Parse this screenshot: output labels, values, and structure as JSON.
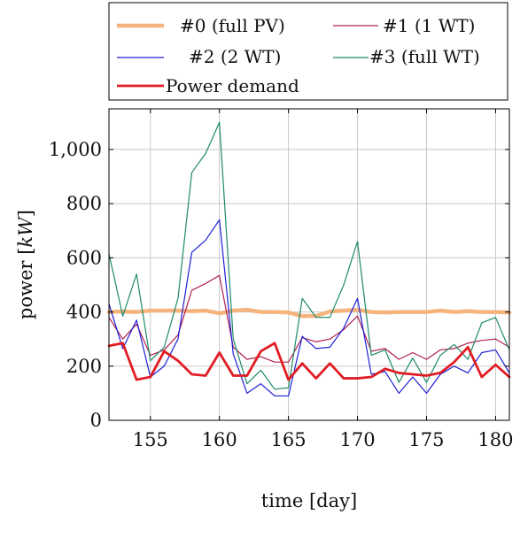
{
  "chart_data": {
    "type": "line",
    "xlabel": "time [day]",
    "ylabel": "power [kW]",
    "ylabel_parts": {
      "prefix": "power [",
      "unit": "kW",
      "suffix": "]"
    },
    "xlim": [
      152,
      181
    ],
    "ylim": [
      0,
      1150
    ],
    "xticks": [
      155,
      160,
      165,
      170,
      175,
      180
    ],
    "yticks": [
      0,
      200,
      400,
      600,
      800,
      1000
    ],
    "ytick_labels": [
      "0",
      "200",
      "400",
      "600",
      "800",
      "1,000"
    ],
    "grid": true,
    "legend_position": "top",
    "x": [
      152,
      153,
      154,
      155,
      156,
      157,
      158,
      159,
      160,
      161,
      162,
      163,
      164,
      165,
      166,
      167,
      168,
      169,
      170,
      171,
      172,
      173,
      174,
      175,
      176,
      177,
      178,
      179,
      180,
      181
    ],
    "series": [
      {
        "name": "#0 (full PV)",
        "color": "#f5b47e",
        "width": 4.5,
        "values": [
          400,
          402,
          400,
          405,
          405,
          405,
          403,
          405,
          395,
          405,
          408,
          400,
          400,
          398,
          385,
          385,
          402,
          405,
          408,
          400,
          398,
          400,
          400,
          400,
          405,
          400,
          403,
          400,
          400,
          398
        ]
      },
      {
        "name": "#1 (1 WT)",
        "color": "#b0204f",
        "width": 1.2,
        "values": [
          380,
          300,
          355,
          240,
          260,
          315,
          480,
          505,
          535,
          270,
          225,
          235,
          215,
          215,
          305,
          290,
          300,
          335,
          385,
          255,
          265,
          225,
          250,
          225,
          260,
          265,
          285,
          295,
          300,
          270
        ]
      },
      {
        "name": "#2 (2 WT)",
        "color": "#1f1fd6",
        "width": 1.2,
        "values": [
          430,
          265,
          370,
          160,
          200,
          300,
          620,
          665,
          740,
          245,
          100,
          135,
          90,
          90,
          310,
          265,
          270,
          340,
          450,
          170,
          180,
          100,
          160,
          100,
          170,
          200,
          175,
          250,
          260,
          175
        ]
      },
      {
        "name": "#3 (full WT)",
        "color": "#1e8a6a",
        "width": 1.2,
        "values": [
          615,
          385,
          540,
          220,
          270,
          450,
          915,
          985,
          1100,
          300,
          135,
          185,
          115,
          120,
          450,
          380,
          380,
          500,
          660,
          240,
          260,
          140,
          230,
          140,
          240,
          280,
          225,
          360,
          380,
          260
        ]
      },
      {
        "name": "Power demand",
        "color": "#e11d24",
        "width": 2.8,
        "values": [
          275,
          285,
          150,
          160,
          255,
          220,
          170,
          165,
          250,
          165,
          165,
          255,
          285,
          150,
          210,
          155,
          210,
          155,
          155,
          160,
          190,
          175,
          170,
          165,
          175,
          215,
          270,
          160,
          205,
          160
        ]
      }
    ]
  }
}
